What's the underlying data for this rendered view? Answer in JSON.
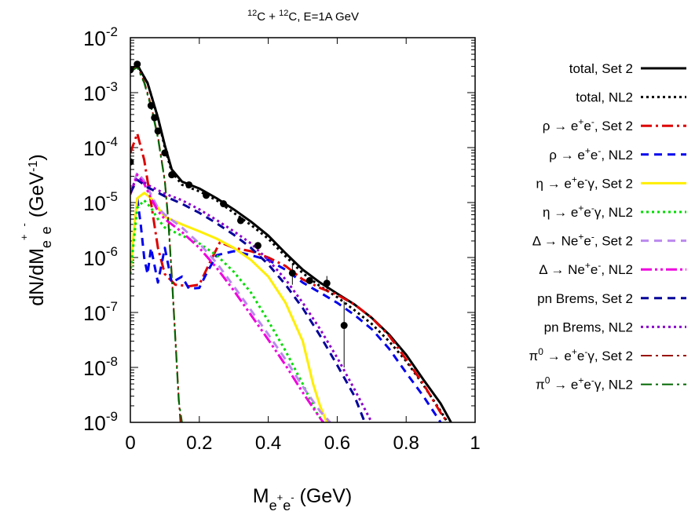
{
  "chart_data": {
    "type": "line",
    "title_parts": {
      "a_sup": "12",
      "a": "C + ",
      "b_sup": "12",
      "b": "C, E=1A GeV"
    },
    "xlabel_parts": {
      "main": "M",
      "sub": "e",
      "subsup": "+",
      "sub2": "e",
      "subsup2": "-",
      "unit": " (GeV)"
    },
    "ylabel_parts": {
      "lead": "dN/dM",
      "sub": "e",
      "subsup": "+",
      "sub2": "e",
      "subsup2": "-",
      "unit_open": " (GeV",
      "unit_sup": "-1",
      "unit_close": ")"
    },
    "xlim": [
      0,
      1
    ],
    "ylim": [
      1e-09,
      0.01
    ],
    "yscale": "log",
    "x_ticks": [
      {
        "value": 0,
        "label": "0"
      },
      {
        "value": 0.2,
        "label": "0.2"
      },
      {
        "value": 0.4,
        "label": "0.4"
      },
      {
        "value": 0.6,
        "label": "0.6"
      },
      {
        "value": 0.8,
        "label": "0.8"
      },
      {
        "value": 1,
        "label": "1"
      }
    ],
    "y_ticks": [
      {
        "value": 1e-09,
        "label": "10",
        "exp": "-9"
      },
      {
        "value": 1e-08,
        "label": "10",
        "exp": "-8"
      },
      {
        "value": 1e-07,
        "label": "10",
        "exp": "-7"
      },
      {
        "value": 1e-06,
        "label": "10",
        "exp": "-6"
      },
      {
        "value": 1e-05,
        "label": "10",
        "exp": "-5"
      },
      {
        "value": 0.0001,
        "label": "10",
        "exp": "-4"
      },
      {
        "value": 0.001,
        "label": "10",
        "exp": "-3"
      },
      {
        "value": 0.01,
        "label": "10",
        "exp": "-2"
      }
    ],
    "grid": false,
    "legend_position": "right outside",
    "series": [
      {
        "name": "total, Set 2",
        "color": "#000000",
        "dash": "solid",
        "width": 3,
        "points": [
          [
            0,
            0.0026
          ],
          [
            0.02,
            0.0032
          ],
          [
            0.05,
            0.0015
          ],
          [
            0.08,
            0.00035
          ],
          [
            0.1,
            0.00011
          ],
          [
            0.12,
            4e-05
          ],
          [
            0.15,
            2.4e-05
          ],
          [
            0.2,
            1.8e-05
          ],
          [
            0.25,
            1.2e-05
          ],
          [
            0.3,
            7.5e-06
          ],
          [
            0.35,
            4.5e-06
          ],
          [
            0.4,
            2.5e-06
          ],
          [
            0.45,
            1.2e-06
          ],
          [
            0.5,
            6e-07
          ],
          [
            0.55,
            3.5e-07
          ],
          [
            0.6,
            2.2e-07
          ],
          [
            0.65,
            1.4e-07
          ],
          [
            0.7,
            8e-08
          ],
          [
            0.75,
            4e-08
          ],
          [
            0.8,
            1.7e-08
          ],
          [
            0.85,
            6e-09
          ],
          [
            0.9,
            2.2e-09
          ],
          [
            0.93,
            1e-09
          ]
        ]
      },
      {
        "name": "total, NL2",
        "color": "#000000",
        "dash": "dot",
        "width": 3,
        "points": [
          [
            0,
            0.0026
          ],
          [
            0.02,
            0.0032
          ],
          [
            0.05,
            0.0015
          ],
          [
            0.08,
            0.00035
          ],
          [
            0.1,
            0.0001
          ],
          [
            0.12,
            3.6e-05
          ],
          [
            0.15,
            2.1e-05
          ],
          [
            0.2,
            1.6e-05
          ],
          [
            0.25,
            1.1e-05
          ],
          [
            0.3,
            6.5e-06
          ],
          [
            0.35,
            3.9e-06
          ],
          [
            0.4,
            2.2e-06
          ],
          [
            0.45,
            1.05e-06
          ],
          [
            0.5,
            5.2e-07
          ],
          [
            0.55,
            3e-07
          ],
          [
            0.6,
            1.9e-07
          ],
          [
            0.65,
            1.1e-07
          ],
          [
            0.7,
            6.2e-08
          ],
          [
            0.75,
            3e-08
          ],
          [
            0.8,
            1.3e-08
          ],
          [
            0.85,
            4.8e-09
          ],
          [
            0.9,
            1.6e-09
          ],
          [
            0.92,
            1e-09
          ]
        ]
      },
      {
        "name": "ρ → e+e-, Set 2",
        "color": "#dd0000",
        "dash": "dashdot",
        "width": 3,
        "points": [
          [
            0,
            8e-05
          ],
          [
            0.02,
            0.00018
          ],
          [
            0.04,
            6e-05
          ],
          [
            0.06,
            1e-05
          ],
          [
            0.08,
            1.5e-06
          ],
          [
            0.1,
            5e-07
          ],
          [
            0.13,
            3.2e-07
          ],
          [
            0.17,
            3e-07
          ],
          [
            0.2,
            3.2e-07
          ],
          [
            0.23,
            8e-07
          ],
          [
            0.26,
            1.9e-06
          ],
          [
            0.3,
            1.5e-06
          ],
          [
            0.35,
            1.3e-06
          ],
          [
            0.4,
            1e-06
          ],
          [
            0.45,
            7e-07
          ],
          [
            0.5,
            4e-07
          ],
          [
            0.55,
            2.8e-07
          ],
          [
            0.6,
            2.1e-07
          ],
          [
            0.65,
            1.4e-07
          ],
          [
            0.7,
            8e-08
          ],
          [
            0.75,
            3.8e-08
          ],
          [
            0.8,
            1.4e-08
          ],
          [
            0.85,
            5e-09
          ],
          [
            0.9,
            1.5e-09
          ],
          [
            0.92,
            1e-09
          ]
        ]
      },
      {
        "name": "ρ → e+e-, NL2",
        "color": "#0000ee",
        "dash": "dash",
        "width": 3,
        "points": [
          [
            0.02,
            1.2e-05
          ],
          [
            0.03,
            4e-06
          ],
          [
            0.04,
            1e-06
          ],
          [
            0.05,
            5e-07
          ],
          [
            0.06,
            1.5e-06
          ],
          [
            0.08,
            3.5e-07
          ],
          [
            0.1,
            1.5e-06
          ],
          [
            0.12,
            3.5e-07
          ],
          [
            0.15,
            4.5e-07
          ],
          [
            0.17,
            2.7e-07
          ],
          [
            0.2,
            2.8e-07
          ],
          [
            0.22,
            5e-07
          ],
          [
            0.25,
            1.1e-06
          ],
          [
            0.3,
            1.3e-06
          ],
          [
            0.35,
            1.1e-06
          ],
          [
            0.4,
            9e-07
          ],
          [
            0.45,
            6e-07
          ],
          [
            0.5,
            3.5e-07
          ],
          [
            0.55,
            2.3e-07
          ],
          [
            0.6,
            1.5e-07
          ],
          [
            0.65,
            9e-08
          ],
          [
            0.7,
            5e-08
          ],
          [
            0.75,
            2.2e-08
          ],
          [
            0.8,
            8e-09
          ],
          [
            0.85,
            3e-09
          ],
          [
            0.9,
            1e-09
          ]
        ]
      },
      {
        "name": "η → e+e-γ, Set 2",
        "color": "#ffee00",
        "dash": "solid",
        "width": 3,
        "points": [
          [
            0,
            5e-07
          ],
          [
            0.01,
            3e-06
          ],
          [
            0.02,
            1.2e-05
          ],
          [
            0.04,
            1.5e-05
          ],
          [
            0.06,
            1.2e-05
          ],
          [
            0.08,
            8e-06
          ],
          [
            0.1,
            5.5e-06
          ],
          [
            0.15,
            4e-06
          ],
          [
            0.2,
            3e-06
          ],
          [
            0.25,
            2.2e-06
          ],
          [
            0.3,
            1.5e-06
          ],
          [
            0.35,
            9e-07
          ],
          [
            0.4,
            4.5e-07
          ],
          [
            0.45,
            1.5e-07
          ],
          [
            0.5,
            3e-08
          ],
          [
            0.53,
            5e-09
          ],
          [
            0.55,
            2e-09
          ],
          [
            0.57,
            1e-09
          ]
        ]
      },
      {
        "name": "η → e+e-γ, NL2",
        "color": "#00dd00",
        "dash": "dot",
        "width": 3,
        "points": [
          [
            0,
            5e-07
          ],
          [
            0.01,
            2e-06
          ],
          [
            0.02,
            8e-06
          ],
          [
            0.04,
            1.1e-05
          ],
          [
            0.06,
            8e-06
          ],
          [
            0.08,
            5e-06
          ],
          [
            0.1,
            3.5e-06
          ],
          [
            0.15,
            2.5e-06
          ],
          [
            0.2,
            1.8e-06
          ],
          [
            0.25,
            1.1e-06
          ],
          [
            0.3,
            5.5e-07
          ],
          [
            0.35,
            2.3e-07
          ],
          [
            0.4,
            7e-08
          ],
          [
            0.45,
            2e-08
          ],
          [
            0.5,
            5e-09
          ],
          [
            0.54,
            1.5e-09
          ],
          [
            0.56,
            1e-09
          ]
        ]
      },
      {
        "name": "Δ → Ne+e-, Set 2",
        "color": "#bb88ee",
        "dash": "dash",
        "width": 3,
        "points": [
          [
            0,
            1.5e-05
          ],
          [
            0.02,
            3.5e-05
          ],
          [
            0.04,
            2.5e-05
          ],
          [
            0.06,
            1.4e-05
          ],
          [
            0.08,
            8e-06
          ],
          [
            0.1,
            6e-06
          ],
          [
            0.15,
            3.5e-06
          ],
          [
            0.2,
            1.8e-06
          ],
          [
            0.25,
            8e-07
          ],
          [
            0.3,
            3e-07
          ],
          [
            0.35,
            1.1e-07
          ],
          [
            0.4,
            4e-08
          ],
          [
            0.45,
            1.4e-08
          ],
          [
            0.5,
            4.5e-09
          ],
          [
            0.55,
            1.6e-09
          ],
          [
            0.58,
            1e-09
          ]
        ]
      },
      {
        "name": "Δ → Ne+e-, NL2",
        "color": "#ee00dd",
        "dash": "dashdotdot",
        "width": 3,
        "points": [
          [
            0,
            1.4e-05
          ],
          [
            0.02,
            3.2e-05
          ],
          [
            0.04,
            2.2e-05
          ],
          [
            0.06,
            1.2e-05
          ],
          [
            0.08,
            7e-06
          ],
          [
            0.1,
            5e-06
          ],
          [
            0.15,
            2.9e-06
          ],
          [
            0.2,
            1.5e-06
          ],
          [
            0.25,
            6.5e-07
          ],
          [
            0.3,
            2.5e-07
          ],
          [
            0.35,
            9e-08
          ],
          [
            0.4,
            3.2e-08
          ],
          [
            0.45,
            1.1e-08
          ],
          [
            0.5,
            3.5e-09
          ],
          [
            0.55,
            1.2e-09
          ],
          [
            0.56,
            1e-09
          ]
        ]
      },
      {
        "name": "pn Brems, Set 2",
        "color": "#000099",
        "dash": "dash",
        "width": 3,
        "points": [
          [
            0,
            1.5e-05
          ],
          [
            0.02,
            2.6e-05
          ],
          [
            0.05,
            1.9e-05
          ],
          [
            0.1,
            1.3e-05
          ],
          [
            0.15,
            9.5e-06
          ],
          [
            0.2,
            6.5e-06
          ],
          [
            0.25,
            4.2e-06
          ],
          [
            0.3,
            2.6e-06
          ],
          [
            0.35,
            1.5e-06
          ],
          [
            0.4,
            7.5e-07
          ],
          [
            0.45,
            3.2e-07
          ],
          [
            0.5,
            1.2e-07
          ],
          [
            0.55,
            3.8e-08
          ],
          [
            0.6,
            1.1e-08
          ],
          [
            0.65,
            3e-09
          ],
          [
            0.68,
            1e-09
          ]
        ]
      },
      {
        "name": "pn Brems, NL2",
        "color": "#8800cc",
        "dash": "dot",
        "width": 3,
        "points": [
          [
            0,
            1.7e-05
          ],
          [
            0.02,
            2.8e-05
          ],
          [
            0.05,
            2.1e-05
          ],
          [
            0.1,
            1.45e-05
          ],
          [
            0.15,
            1.1e-05
          ],
          [
            0.2,
            7.5e-06
          ],
          [
            0.25,
            4.8e-06
          ],
          [
            0.3,
            3e-06
          ],
          [
            0.35,
            1.8e-06
          ],
          [
            0.4,
            9e-07
          ],
          [
            0.45,
            4e-07
          ],
          [
            0.5,
            1.5e-07
          ],
          [
            0.55,
            5e-08
          ],
          [
            0.6,
            1.5e-08
          ],
          [
            0.65,
            4e-09
          ],
          [
            0.7,
            1e-09
          ]
        ]
      },
      {
        "name": "π0 → e+e-γ, Set 2",
        "color": "#991100",
        "dash": "dashdot",
        "width": 2,
        "points": [
          [
            0,
            0.0024
          ],
          [
            0.02,
            0.003
          ],
          [
            0.04,
            0.0016
          ],
          [
            0.06,
            0.0006
          ],
          [
            0.08,
            0.00016
          ],
          [
            0.1,
            2.5e-05
          ],
          [
            0.11,
            5e-06
          ],
          [
            0.12,
            5e-07
          ],
          [
            0.13,
            4e-08
          ],
          [
            0.14,
            3e-09
          ],
          [
            0.145,
            1e-09
          ]
        ]
      },
      {
        "name": "π0 → e+e-γ, NL2",
        "color": "#006600",
        "dash": "dashdot",
        "width": 2,
        "points": [
          [
            0,
            0.0024
          ],
          [
            0.02,
            0.0029
          ],
          [
            0.04,
            0.0015
          ],
          [
            0.06,
            0.00055
          ],
          [
            0.08,
            0.00015
          ],
          [
            0.1,
            2.4e-05
          ],
          [
            0.11,
            4.5e-06
          ],
          [
            0.12,
            4.5e-07
          ],
          [
            0.13,
            3.5e-08
          ],
          [
            0.14,
            2.5e-09
          ],
          [
            0.15,
            1e-09
          ]
        ]
      }
    ],
    "legend_labels": [
      {
        "pre": "total, Set 2"
      },
      {
        "pre": "total, NL2"
      },
      {
        "pre": "ρ → e",
        "sup1": "+",
        "mid": "e",
        "sup2": "-",
        "post": ", Set 2"
      },
      {
        "pre": "ρ → e",
        "sup1": "+",
        "mid": "e",
        "sup2": "-",
        "post": ", NL2"
      },
      {
        "pre": "η → e",
        "sup1": "+",
        "mid": "e",
        "sup2": "-",
        "post": "γ, Set 2"
      },
      {
        "pre": "η → e",
        "sup1": "+",
        "mid": "e",
        "sup2": "-",
        "post": "γ, NL2"
      },
      {
        "pre": "Δ → Ne",
        "sup1": "+",
        "mid": "e",
        "sup2": "-",
        "post": ", Set 2"
      },
      {
        "pre": "Δ → Ne",
        "sup1": "+",
        "mid": "e",
        "sup2": "-",
        "post": ", NL2"
      },
      {
        "pre": "pn Brems, Set 2"
      },
      {
        "pre": "pn Brems, NL2"
      },
      {
        "pre": "π",
        "sup0": "0",
        "pre2": " → e",
        "sup1": "+",
        "mid": "e",
        "sup2": "-",
        "post": "γ, Set 2"
      },
      {
        "pre": "π",
        "sup0": "0",
        "pre2": " → e",
        "sup1": "+",
        "mid": "e",
        "sup2": "-",
        "post": "γ, NL2"
      }
    ],
    "experimental_data": {
      "points": [
        {
          "x": 0.0,
          "y": 5.5e-05
        },
        {
          "x": 0.0,
          "y": 0.0026
        },
        {
          "x": 0.02,
          "y": 0.0033
        },
        {
          "x": 0.06,
          "y": 0.00058
        },
        {
          "x": 0.07,
          "y": 0.00035
        },
        {
          "x": 0.08,
          "y": 0.0002
        },
        {
          "x": 0.1,
          "y": 8e-05
        },
        {
          "x": 0.12,
          "y": 3.2e-05
        },
        {
          "x": 0.17,
          "y": 2.1e-05
        },
        {
          "x": 0.22,
          "y": 1.35e-05
        },
        {
          "x": 0.27,
          "y": 9.5e-06
        },
        {
          "x": 0.32,
          "y": 4.7e-06
        },
        {
          "x": 0.37,
          "y": 1.65e-06
        },
        {
          "x": 0.47,
          "y": 5.2e-07
        },
        {
          "x": 0.52,
          "y": 3.8e-07
        },
        {
          "x": 0.57,
          "y": 3.4e-07
        },
        {
          "x": 0.62,
          "y": 5.8e-08
        }
      ],
      "error_bars": [
        {
          "x": 0.47,
          "lo": 3.2e-07,
          "hi": 7.5e-07
        },
        {
          "x": 0.57,
          "lo": 2.4e-07,
          "hi": 4.6e-07
        },
        {
          "x": 0.62,
          "lo": 1e-08,
          "hi": 1.6e-07
        }
      ]
    }
  }
}
